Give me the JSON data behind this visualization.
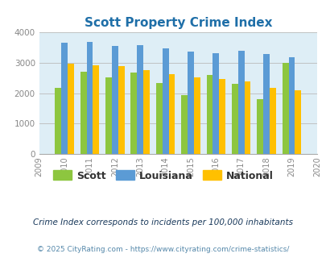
{
  "title": "Scott Property Crime Index",
  "all_years": [
    2009,
    2010,
    2011,
    2012,
    2013,
    2014,
    2015,
    2016,
    2017,
    2018,
    2019,
    2020
  ],
  "bar_years": [
    2010,
    2011,
    2012,
    2013,
    2014,
    2015,
    2016,
    2017,
    2018,
    2019
  ],
  "scott": [
    2175,
    2700,
    2520,
    2680,
    2320,
    1940,
    2580,
    2300,
    1800,
    2980
  ],
  "louisiana": [
    3640,
    3680,
    3550,
    3570,
    3460,
    3360,
    3310,
    3380,
    3270,
    3160
  ],
  "national": [
    2950,
    2920,
    2870,
    2740,
    2610,
    2510,
    2460,
    2370,
    2180,
    2100
  ],
  "scott_color": "#8dc63f",
  "louisiana_color": "#5b9bd5",
  "national_color": "#ffc000",
  "bg_color": "#deeef6",
  "title_color": "#1f6fa8",
  "ylim": [
    0,
    4000
  ],
  "yticks": [
    0,
    1000,
    2000,
    3000,
    4000
  ],
  "footnote1": "Crime Index corresponds to incidents per 100,000 inhabitants",
  "footnote2": "© 2025 CityRating.com - https://www.cityrating.com/crime-statistics/",
  "legend_labels": [
    "Scott",
    "Louisiana",
    "National"
  ],
  "legend_text_color": "#333333",
  "footnote1_color": "#1a3a5c",
  "footnote2_color": "#5588aa",
  "bar_width": 0.25
}
